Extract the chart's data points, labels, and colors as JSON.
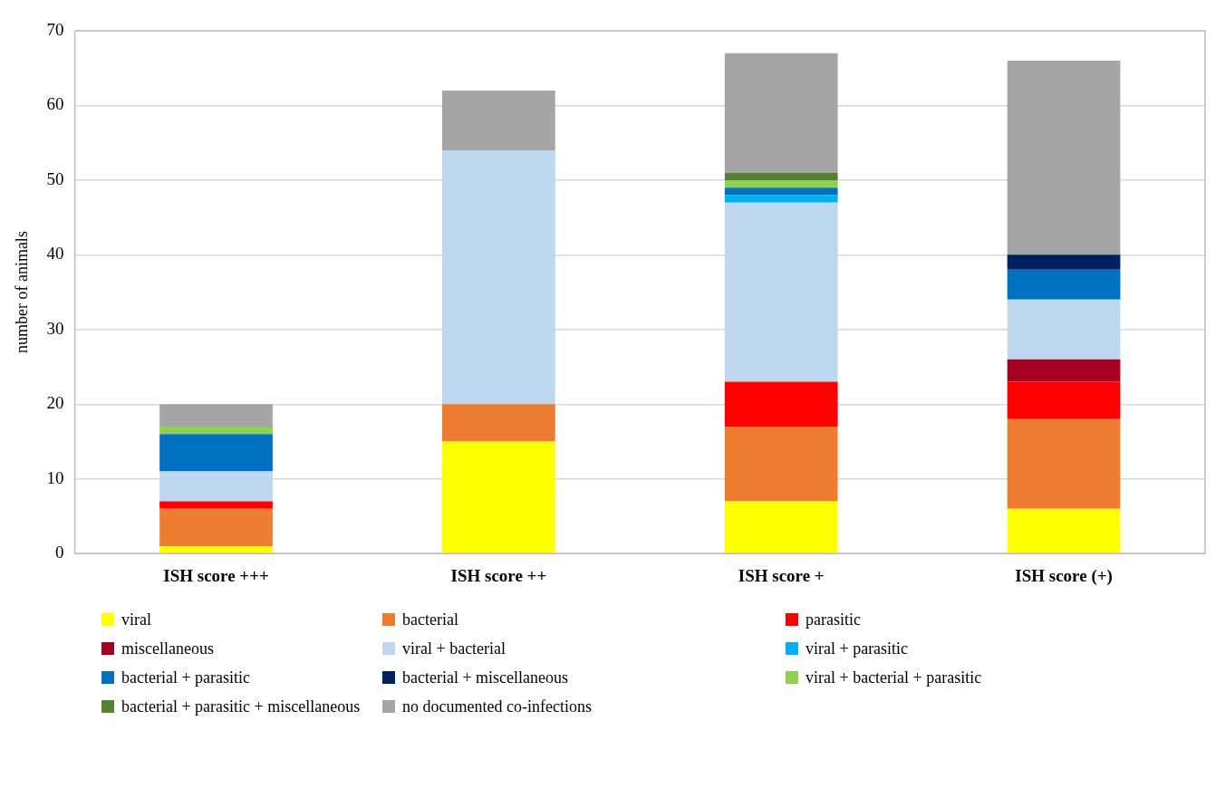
{
  "chart_data": {
    "type": "bar",
    "stacked": true,
    "ylabel": "number of animals",
    "categories": [
      "ISH score +++",
      "ISH score ++",
      "ISH score +",
      "ISH score (+)"
    ],
    "ylim": [
      0,
      70
    ],
    "yticks": [
      0,
      10,
      20,
      30,
      40,
      50,
      60,
      70
    ],
    "grid": "y",
    "legend": "bottom",
    "series": [
      {
        "name": "viral",
        "color": "#ffff00",
        "values": [
          1,
          15,
          7,
          6
        ]
      },
      {
        "name": "bacterial",
        "color": "#ed7d31",
        "values": [
          5,
          5,
          10,
          12
        ]
      },
      {
        "name": "parasitic",
        "color": "#ff0000",
        "values": [
          1,
          0,
          6,
          5
        ]
      },
      {
        "name": "miscellaneous",
        "color": "#a50021",
        "values": [
          0,
          0,
          0,
          3
        ]
      },
      {
        "name": "viral + bacterial",
        "color": "#bdd7ee",
        "values": [
          4,
          34,
          24,
          8
        ]
      },
      {
        "name": "viral + parasitic",
        "color": "#00b0f0",
        "values": [
          0,
          0,
          1,
          0
        ]
      },
      {
        "name": "bacterial + parasitic",
        "color": "#0070c0",
        "values": [
          5,
          0,
          1,
          4
        ]
      },
      {
        "name": "bacterial + miscellaneous",
        "color": "#002060",
        "values": [
          0,
          0,
          0,
          2
        ]
      },
      {
        "name": "viral + bacterial + parasitic",
        "color": "#92d050",
        "values": [
          1,
          0,
          1,
          0
        ]
      },
      {
        "name": "bacterial + parasitic + miscellaneous",
        "color": "#548235",
        "values": [
          0,
          0,
          1,
          0
        ]
      },
      {
        "name": "no documented co-infections",
        "color": "#a5a5a5",
        "values": [
          3,
          8,
          16,
          26
        ]
      }
    ]
  }
}
